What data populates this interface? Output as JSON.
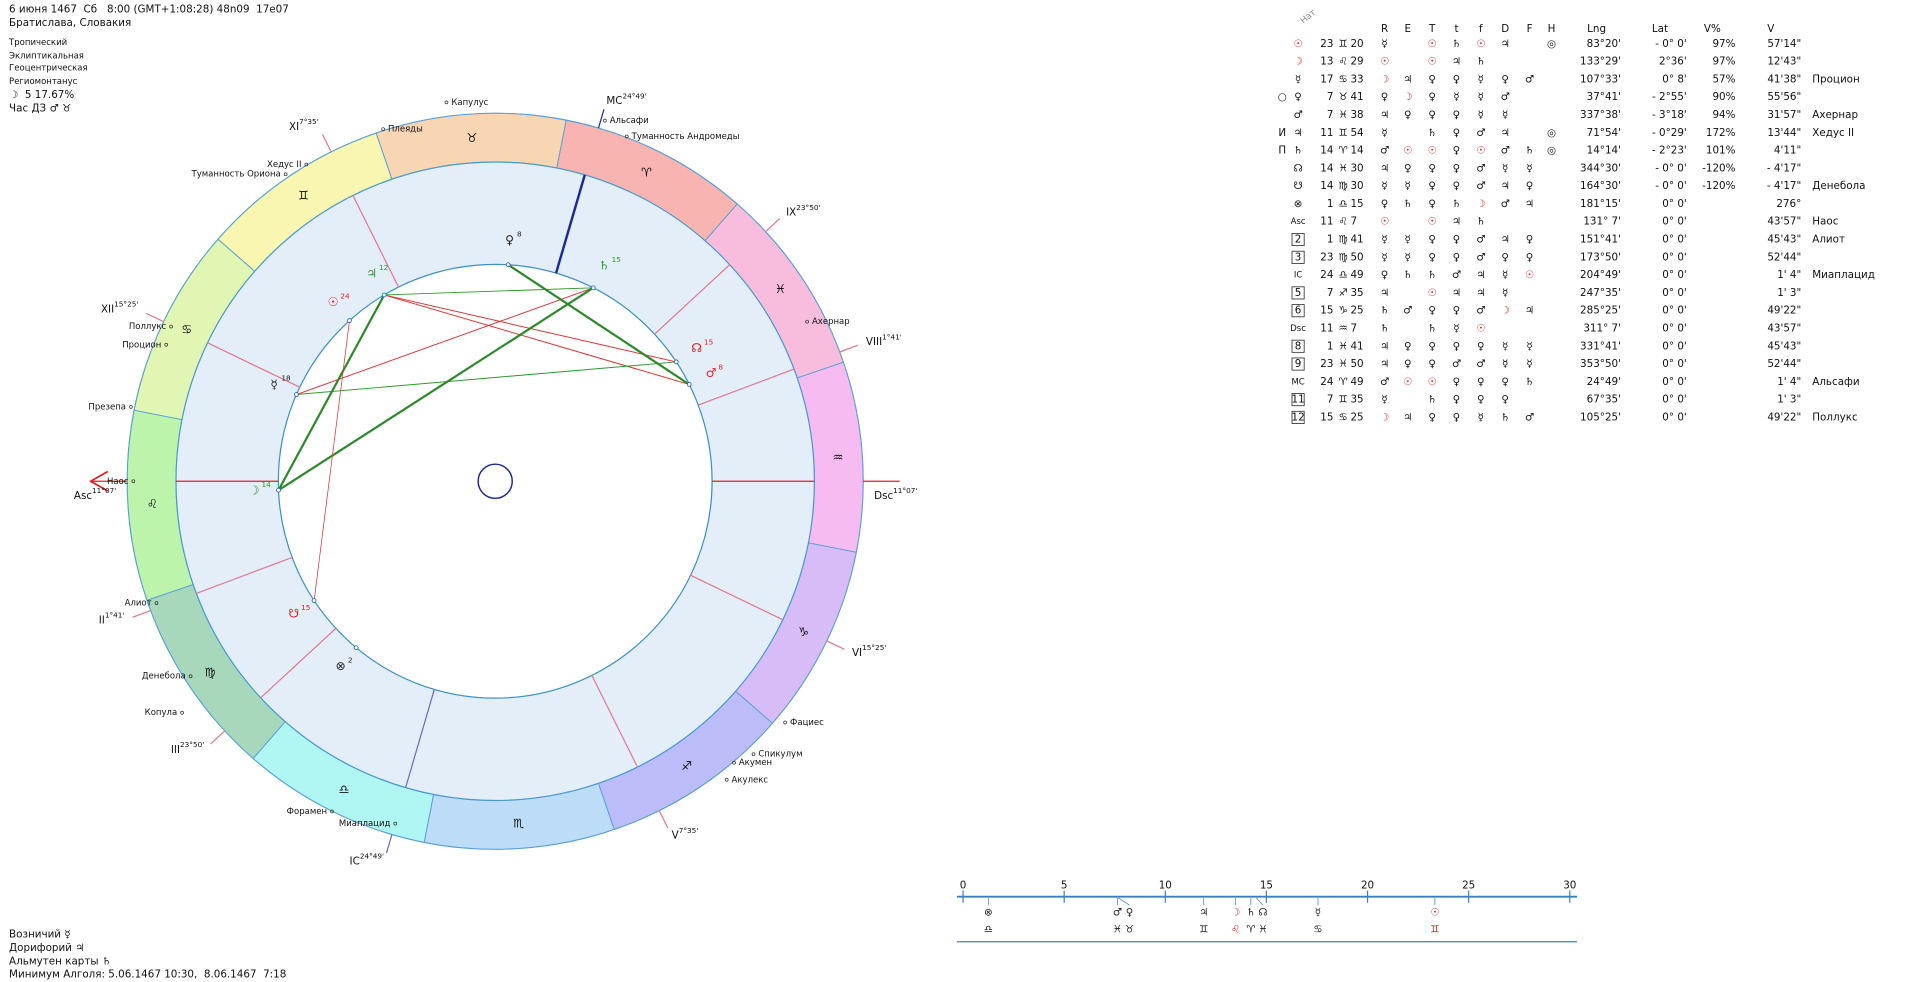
{
  "header": {
    "date_line": "6 июня 1467  Сб   8:00 (GMT+1:08:28) 48n09  17e07",
    "place": "Братислава, Словакия",
    "settings": [
      "Тропический",
      "Эклиптикальная",
      "Геоцентрическая",
      "Региомонтанус"
    ],
    "moon_phase": "☽  5 17.67%",
    "hour": "Час ДЗ ♂ ♉"
  },
  "footer": [
    "Возничий ☿",
    "Дорифорий ♃",
    "Альмутен карты ♄",
    "Минимум Алголя: 5.06.1467 10:30,  8.06.1467  7:18"
  ],
  "wheel": {
    "signs": [
      "♈",
      "♉",
      "♊",
      "♋",
      "♌",
      "♍",
      "♎",
      "♏",
      "♐",
      "♑",
      "♒",
      "♓"
    ],
    "sign_colors": [
      "#f8b4b0",
      "#f8d6b4",
      "#f8f6b0",
      "#e2f6b4",
      "#bcf4ac",
      "#a8d8bc",
      "#b0f6f2",
      "#bcdcf8",
      "#bcbcf8",
      "#d8bcf8",
      "#f6bcf2",
      "#f8bcdc"
    ],
    "planet_degrees": [
      "24",
      "14",
      "18",
      "8",
      "8",
      "12",
      "15",
      "15",
      "15",
      "2"
    ],
    "planet_colors": [
      "#e02020",
      "#2a9a2a",
      "#222",
      "#222",
      "#e02020",
      "#2a9a2a",
      "#2a9a2a",
      "#e02020",
      "#e02020",
      "#222"
    ],
    "cusps": [
      {
        "num": "Asc",
        "deg": "11°07'"
      },
      {
        "num": "II",
        "deg": "1°41'"
      },
      {
        "num": "III",
        "deg": "23°50'"
      },
      {
        "num": "IC",
        "deg": "24°49'"
      },
      {
        "num": "V",
        "deg": "7°35'"
      },
      {
        "num": "VI",
        "deg": "15°25'"
      },
      {
        "num": "Dsc",
        "deg": "11°07'"
      },
      {
        "num": "VIII",
        "deg": "1°41'"
      },
      {
        "num": "IX",
        "deg": "23°50'"
      },
      {
        "num": "MC",
        "deg": "24°49'"
      },
      {
        "num": "XI",
        "deg": "7°35'"
      },
      {
        "num": "XII",
        "deg": "15°25'"
      }
    ],
    "stars": [
      "Капулус",
      "Плеяды",
      "Альсафи",
      "Туманность Андромеды",
      "Хедус II",
      "Туманность Ориона",
      "Поллукс",
      "Процион",
      "Презепа",
      "Наос",
      "Алиот",
      "Денебола",
      "Копула",
      "Форамен",
      "Миаплацид",
      "Фациес",
      "Спикулум",
      "Акумен",
      "Акулекс",
      "Ахернар"
    ]
  },
  "table": {
    "nat": "Нат",
    "columns": [
      "R",
      "E",
      "T",
      "t",
      "f",
      "D",
      "F",
      "H",
      "Lng",
      "Lat",
      "V%",
      "V"
    ],
    "rows": [
      [
        null,
        "☉",
        "23",
        "♊",
        "20",
        "☿",
        null,
        "☉",
        "♄",
        "☉",
        "♃",
        null,
        "◎",
        "83°20'",
        "- 0° 0'",
        "97%",
        "57'14\"",
        null
      ],
      [
        null,
        "☽",
        "13",
        "♌",
        "29",
        "☉",
        null,
        "☉",
        "♃",
        "♄",
        null,
        null,
        null,
        "133°29'",
        "2°36'",
        "97%",
        "12'43\"",
        null
      ],
      [
        null,
        "☿",
        "17",
        "♋",
        "33",
        "☽",
        "♃",
        "♀",
        "♀",
        "☿",
        "♀",
        "♂",
        null,
        "107°33'",
        "0° 8'",
        "57%",
        "41'38\"",
        "Процион"
      ],
      [
        "○",
        "♀",
        "7",
        "♉",
        "41",
        "♀",
        "☽",
        "♀",
        "☿",
        "☿",
        "♂",
        null,
        null,
        "37°41'",
        "- 2°55'",
        "90%",
        "55'56\"",
        null
      ],
      [
        null,
        "♂",
        "7",
        "♓",
        "38",
        "♃",
        "♀",
        "♀",
        "♀",
        "☿",
        "☿",
        null,
        null,
        "337°38'",
        "- 3°18'",
        "94%",
        "31'57\"",
        "Ахернар"
      ],
      [
        "И",
        "♃",
        "11",
        "♊",
        "54",
        "☿",
        null,
        "♄",
        "♀",
        "♂",
        "♃",
        null,
        "◎",
        "71°54'",
        "- 0°29'",
        "172%",
        "13'44\"",
        "Хедус II"
      ],
      [
        "П",
        "♄",
        "14",
        "♈",
        "14",
        "♂",
        "☉",
        "☉",
        "♀",
        "☉",
        "♂",
        "♄",
        "◎",
        "14°14'",
        "- 2°23'",
        "101%",
        "4'11\"",
        null
      ],
      [
        null,
        "☊",
        "14",
        "♓",
        "30",
        "♃",
        "♀",
        "♀",
        "♀",
        "♂",
        "☿",
        "☿",
        null,
        "344°30'",
        "- 0° 0'",
        "-120%",
        "- 4'17\"",
        null
      ],
      [
        null,
        "☋",
        "14",
        "♍",
        "30",
        "☿",
        "☿",
        "♀",
        "♀",
        "♂",
        "♃",
        "♀",
        null,
        "164°30'",
        "- 0° 0'",
        "-120%",
        "- 4'17\"",
        "Денебола"
      ],
      [
        null,
        "⊗",
        "1",
        "♎",
        "15",
        "♀",
        "♄",
        "♀",
        "♄",
        "☽",
        "♂",
        "♃",
        null,
        "181°15'",
        "0° 0'",
        null,
        "276°",
        null
      ],
      [
        null,
        "Asc",
        "11",
        "♌",
        "7",
        "☉",
        null,
        "☉",
        "♃",
        "♄",
        null,
        null,
        null,
        "131° 7'",
        "0° 0'",
        null,
        "43'57\"",
        "Наос"
      ],
      [
        null,
        "2",
        "1",
        "♍",
        "41",
        "☿",
        "☿",
        "♀",
        "♀",
        "♂",
        "♃",
        "♀",
        null,
        "151°41'",
        "0° 0'",
        null,
        "45'43\"",
        "Алиот"
      ],
      [
        null,
        "3",
        "23",
        "♍",
        "50",
        "☿",
        "☿",
        "♀",
        "♀",
        "♂",
        "♀",
        "♀",
        null,
        "173°50'",
        "0° 0'",
        null,
        "52'44\"",
        null
      ],
      [
        null,
        "IC",
        "24",
        "♎",
        "49",
        "♀",
        "♄",
        "♄",
        "♂",
        "♃",
        "☿",
        "☉",
        null,
        "204°49'",
        "0° 0'",
        null,
        "1' 4\"",
        "Миаплацид"
      ],
      [
        null,
        "5",
        "7",
        "♐",
        "35",
        "♃",
        null,
        "☉",
        "♃",
        "♃",
        "☿",
        null,
        null,
        "247°35'",
        "0° 0'",
        null,
        "1' 3\"",
        null
      ],
      [
        null,
        "6",
        "15",
        "♑",
        "25",
        "♄",
        "♂",
        "♀",
        "♀",
        "♂",
        "☽",
        "♃",
        null,
        "285°25'",
        "0° 0'",
        null,
        "49'22\"",
        null
      ],
      [
        null,
        "Dsc",
        "11",
        "♒",
        "7",
        "♄",
        null,
        "♄",
        "☿",
        "☉",
        null,
        null,
        null,
        "311° 7'",
        "0° 0'",
        null,
        "43'57\"",
        null
      ],
      [
        null,
        "8",
        "1",
        "♓",
        "41",
        "♃",
        "♀",
        "♀",
        "♀",
        "♀",
        "☿",
        "☿",
        null,
        "331°41'",
        "0° 0'",
        null,
        "45'43\"",
        null
      ],
      [
        null,
        "9",
        "23",
        "♓",
        "50",
        "♃",
        "♀",
        "♀",
        "♂",
        "♂",
        "☿",
        "☿",
        null,
        "353°50'",
        "0° 0'",
        null,
        "52'44\"",
        null
      ],
      [
        null,
        "MC",
        "24",
        "♈",
        "49",
        "♂",
        "☉",
        "☉",
        "♀",
        "♀",
        "♀",
        "♄",
        null,
        "24°49'",
        "0° 0'",
        null,
        "1' 4\"",
        "Альсафи"
      ],
      [
        null,
        "11",
        "7",
        "♊",
        "35",
        "☿",
        null,
        "♄",
        "♀",
        "♀",
        "♀",
        null,
        null,
        "67°35'",
        "0° 0'",
        null,
        "1' 3\"",
        null
      ],
      [
        null,
        "12",
        "15",
        "♋",
        "25",
        "☽",
        "♃",
        "♀",
        "♀",
        "☿",
        "♄",
        "♂",
        null,
        "105°25'",
        "0° 0'",
        null,
        "49'22\"",
        "Поллукс"
      ]
    ]
  },
  "ruler": {
    "xlim": [
      0,
      30
    ],
    "ticks": [
      0,
      5,
      10,
      15,
      20,
      25,
      30
    ],
    "items": [
      {
        "glyph": "⊗",
        "sign": "♎",
        "value": 1.25,
        "color": "#222"
      },
      {
        "glyph": "♂",
        "sign": "♓",
        "value": 7.63,
        "color": "#222"
      },
      {
        "glyph": "♀",
        "sign": "♉",
        "value": 7.68,
        "color": "#222"
      },
      {
        "glyph": "♃",
        "sign": "♊",
        "value": 11.9,
        "color": "#222"
      },
      {
        "glyph": "☽",
        "sign": "♌",
        "value": 13.48,
        "color": "#e02020"
      },
      {
        "glyph": "♄",
        "sign": "♈",
        "value": 14.23,
        "color": "#222"
      },
      {
        "glyph": "☊",
        "sign": "♓",
        "value": 14.5,
        "color": "#222"
      },
      {
        "glyph": "☿",
        "sign": "♋",
        "value": 17.55,
        "color": "#222"
      },
      {
        "glyph": "☉",
        "sign": "♊",
        "value": 23.33,
        "color": "#e02020"
      }
    ]
  }
}
